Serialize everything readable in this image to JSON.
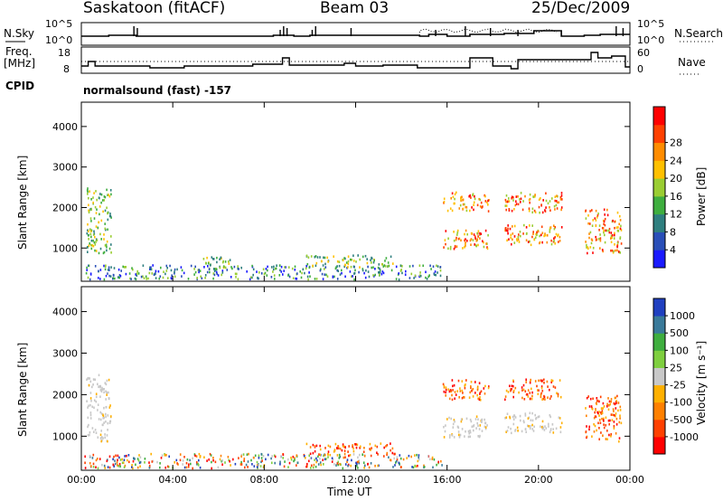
{
  "header": {
    "station": "Saskatoon (fitACF)",
    "beam": "Beam 03",
    "date": "25/Dec/2009"
  },
  "noise_panel": {
    "left_label": "N.Sky",
    "left_ticks": [
      "10^5",
      "10^0"
    ],
    "right_label": "N.Search",
    "right_ticks": [
      "10^5",
      "10^0"
    ],
    "right_line_style": "dotted"
  },
  "freq_panel": {
    "left_label_1": "Freq.",
    "left_label_2": "[MHz]",
    "left_ticks": [
      "18",
      "8"
    ],
    "right_label": "Nave",
    "right_ticks": [
      "60",
      "0"
    ],
    "right_line_style": "dotted"
  },
  "cpid": {
    "label": "CPID",
    "program": "normalsound (fast) -157"
  },
  "x_axis": {
    "label": "Time UT",
    "ticks": [
      "00:00",
      "04:00",
      "08:00",
      "12:00",
      "16:00",
      "20:00",
      "00:00"
    ],
    "hours": [
      0,
      4,
      8,
      12,
      16,
      20,
      24
    ]
  },
  "chart_data": [
    {
      "type": "heatmap",
      "title": "",
      "ylabel": "Slant Range [km]",
      "xlabel": "",
      "xlim_hours": [
        0,
        24
      ],
      "ylim": [
        180,
        4600
      ],
      "yticks": [
        "1000",
        "2000",
        "3000",
        "4000"
      ],
      "colorbar": {
        "label": "Power [dB]",
        "ticks": [
          "4",
          "8",
          "12",
          "16",
          "20",
          "24",
          "28"
        ],
        "colors": [
          "#1a1aff",
          "#2a4fb8",
          "#2f7f7f",
          "#3fae3f",
          "#9acd32",
          "#ffc000",
          "#ff8c00",
          "#ff4000",
          "#ff0000"
        ]
      },
      "echo_regions": [
        {
          "t0": 0.2,
          "t1": 1.3,
          "r0": 900,
          "r1": 2500,
          "level": "mid"
        },
        {
          "t0": 0.1,
          "t1": 15.8,
          "r0": 250,
          "r1": 600,
          "level": "low"
        },
        {
          "t0": 5.3,
          "t1": 6.6,
          "r0": 500,
          "r1": 800,
          "level": "mid"
        },
        {
          "t0": 9.8,
          "t1": 13.7,
          "r0": 550,
          "r1": 850,
          "level": "mid"
        },
        {
          "t0": 15.8,
          "t1": 17.8,
          "r0": 1900,
          "r1": 2400,
          "level": "high"
        },
        {
          "t0": 15.8,
          "t1": 17.8,
          "r0": 1000,
          "r1": 1500,
          "level": "high"
        },
        {
          "t0": 18.5,
          "t1": 21.0,
          "r0": 1900,
          "r1": 2400,
          "level": "high"
        },
        {
          "t0": 18.5,
          "t1": 21.0,
          "r0": 1100,
          "r1": 1600,
          "level": "high"
        },
        {
          "t0": 22.0,
          "t1": 23.6,
          "r0": 900,
          "r1": 2000,
          "level": "high"
        }
      ]
    },
    {
      "type": "heatmap",
      "title": "",
      "ylabel": "Slant Range [km]",
      "xlabel": "Time UT",
      "xlim_hours": [
        0,
        24
      ],
      "ylim": [
        180,
        4600
      ],
      "yticks": [
        "1000",
        "2000",
        "3000",
        "4000"
      ],
      "colorbar": {
        "label": "Velocity [m s⁻¹]",
        "ticks": [
          "1000",
          "500",
          "100",
          "25",
          "-25",
          "-100",
          "-500",
          "-1000"
        ],
        "colors": [
          "#2040c0",
          "#3a7a9a",
          "#3fae3f",
          "#7fcf3f",
          "#c8c8c8",
          "#ffb000",
          "#ff8000",
          "#ff4000",
          "#ff0000"
        ]
      },
      "echo_regions": [
        {
          "t0": 0.2,
          "t1": 1.3,
          "r0": 900,
          "r1": 2500,
          "level": "ground"
        },
        {
          "t0": 0.1,
          "t1": 15.8,
          "r0": 250,
          "r1": 600,
          "level": "mixed"
        },
        {
          "t0": 9.8,
          "t1": 13.7,
          "r0": 550,
          "r1": 850,
          "level": "neg"
        },
        {
          "t0": 15.8,
          "t1": 17.8,
          "r0": 1900,
          "r1": 2400,
          "level": "neg"
        },
        {
          "t0": 15.8,
          "t1": 17.8,
          "r0": 1000,
          "r1": 1500,
          "level": "ground"
        },
        {
          "t0": 18.5,
          "t1": 21.0,
          "r0": 1900,
          "r1": 2400,
          "level": "neg"
        },
        {
          "t0": 18.5,
          "t1": 21.0,
          "r0": 1100,
          "r1": 1600,
          "level": "ground"
        },
        {
          "t0": 22.0,
          "t1": 23.6,
          "r0": 900,
          "r1": 2000,
          "level": "neg"
        }
      ]
    }
  ]
}
